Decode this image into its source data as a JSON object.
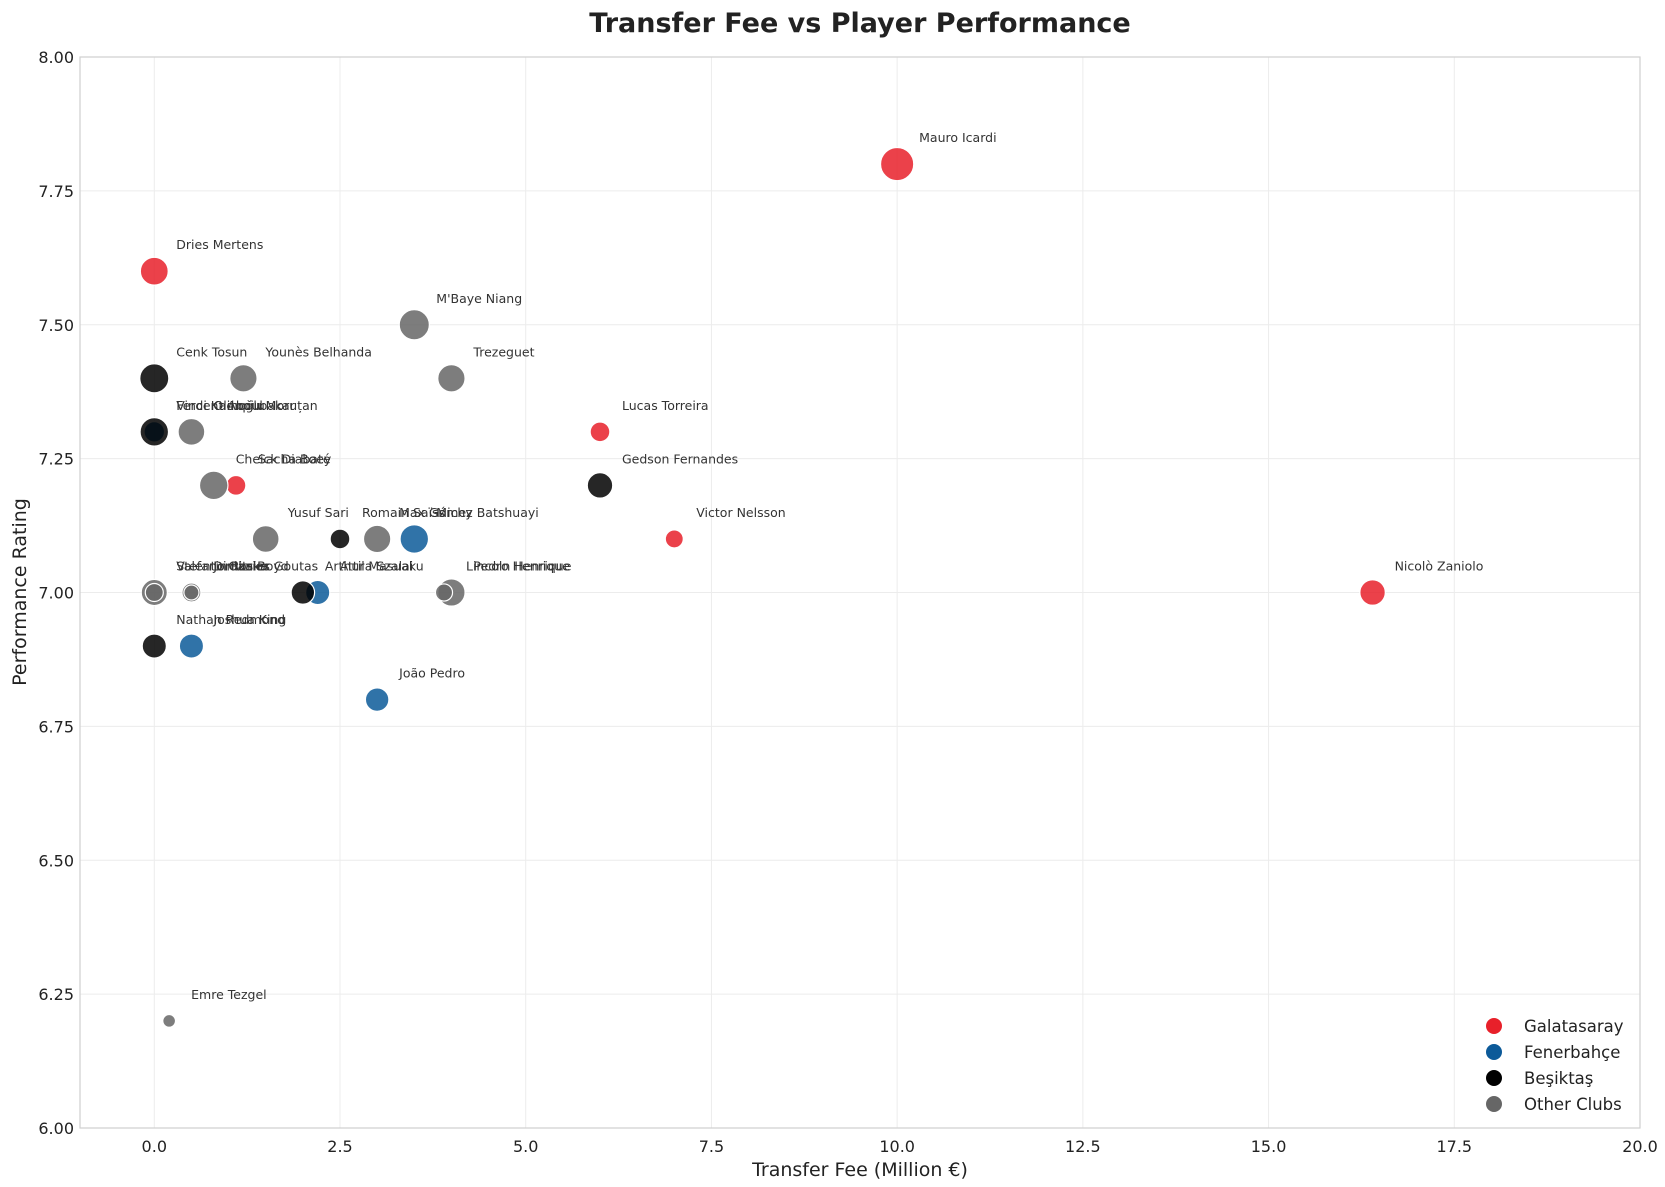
{
  "chart_data": {
    "type": "scatter",
    "title": "Transfer Fee vs Player Performance",
    "xlabel": "Transfer Fee (Million €)",
    "ylabel": "Performance Rating",
    "xlim": [
      -1,
      20
    ],
    "ylim": [
      6.0,
      8.0
    ],
    "xticks": [
      "0.0",
      "2.5",
      "5.0",
      "7.5",
      "10.0",
      "12.5",
      "15.0",
      "17.5",
      "20.0"
    ],
    "yticks": [
      "6.00",
      "6.25",
      "6.50",
      "6.75",
      "7.00",
      "7.25",
      "7.50",
      "7.75",
      "8.00"
    ],
    "grid": true,
    "legend_position": "lower-right",
    "colors": {
      "Galatasaray": "#e8202a",
      "Fenerbahçe": "#0c5a99",
      "Beşiktaş": "#000000",
      "Other Clubs": "#666666"
    },
    "legend": [
      "Galatasaray",
      "Fenerbahçe",
      "Beşiktaş",
      "Other Clubs"
    ],
    "series": [
      {
        "name": "Galatasaray",
        "points": [
          {
            "label": "Mauro Icardi",
            "x": 10.0,
            "y": 7.8,
            "size": 3.4
          },
          {
            "label": "Dries Mertens",
            "x": 0.0,
            "y": 7.6,
            "size": 2.4
          },
          {
            "label": "Lucas Torreira",
            "x": 6.0,
            "y": 7.3,
            "size": 1.2
          },
          {
            "label": "Sacha Boey",
            "x": 1.1,
            "y": 7.2,
            "size": 1.2
          },
          {
            "label": "Victor Nelsson",
            "x": 7.0,
            "y": 7.1,
            "size": 1.0
          },
          {
            "label": "Nicolò Zaniolo",
            "x": 16.4,
            "y": 7.0,
            "size": 2.0
          }
        ]
      },
      {
        "name": "Fenerbahçe",
        "points": [
          {
            "label": "Ferdi Kadıoğlu",
            "x": 0.0,
            "y": 7.3,
            "size": 1.3
          },
          {
            "label": "Michy Batshuayi",
            "x": 3.5,
            "y": 7.1,
            "size": 2.5
          },
          {
            "label": "Attila Szalai",
            "x": 2.2,
            "y": 7.0,
            "size": 1.8
          },
          {
            "label": "Joshua King",
            "x": 0.5,
            "y": 6.9,
            "size": 1.8
          },
          {
            "label": "João Pedro",
            "x": 3.0,
            "y": 6.8,
            "size": 1.7
          }
        ]
      },
      {
        "name": "Beşiktaş",
        "points": [
          {
            "label": "Cenk Tosun",
            "x": 0.0,
            "y": 7.4,
            "size": 2.6
          },
          {
            "label": "Vincent Aboubakar",
            "x": 0.0,
            "y": 7.3,
            "size": 2.5
          },
          {
            "label": "Gedson Fernandes",
            "x": 6.0,
            "y": 7.2,
            "size": 2.0
          },
          {
            "label": "Romain Saïss",
            "x": 2.5,
            "y": 7.1,
            "size": 1.2
          },
          {
            "label": "Arthur Masuaku",
            "x": 2.0,
            "y": 7.0,
            "size": 1.7
          },
          {
            "label": "Nathan Redmond",
            "x": 0.0,
            "y": 6.9,
            "size": 1.8
          }
        ]
      },
      {
        "name": "Other Clubs",
        "points": [
          {
            "label": "M'Baye Niang",
            "x": 3.5,
            "y": 7.5,
            "size": 2.8
          },
          {
            "label": "Younès Belhanda",
            "x": 1.2,
            "y": 7.4,
            "size": 2.3
          },
          {
            "label": "Trezeguet",
            "x": 4.0,
            "y": 7.4,
            "size": 2.3
          },
          {
            "label": "Olimpiu Moruțan",
            "x": 0.5,
            "y": 7.3,
            "size": 2.2
          },
          {
            "label": "Cheick Diabaté",
            "x": 0.8,
            "y": 7.2,
            "size": 2.5
          },
          {
            "label": "Yusuf Sari",
            "x": 1.5,
            "y": 7.1,
            "size": 2.2
          },
          {
            "label": "Max Gómez",
            "x": 3.0,
            "y": 7.1,
            "size": 2.3
          },
          {
            "label": "Pedro Henrique",
            "x": 4.0,
            "y": 7.0,
            "size": 2.3
          },
          {
            "label": "Lincoln Henrique",
            "x": 3.9,
            "y": 7.0,
            "size": 0.9
          },
          {
            "label": "Valentin Rosier",
            "x": 0.0,
            "y": 7.0,
            "size": 2.1
          },
          {
            "label": "Stefano Okaka",
            "x": 0.0,
            "y": 7.0,
            "size": 1.0
          },
          {
            "label": "Jordan Boyd",
            "x": 0.5,
            "y": 7.0,
            "size": 1.1
          },
          {
            "label": "Dimitrios Goutas",
            "x": 0.5,
            "y": 7.0,
            "size": 0.7
          },
          {
            "label": "Emre Tezgel",
            "x": 0.2,
            "y": 6.2,
            "size": 0.5
          }
        ]
      }
    ]
  }
}
